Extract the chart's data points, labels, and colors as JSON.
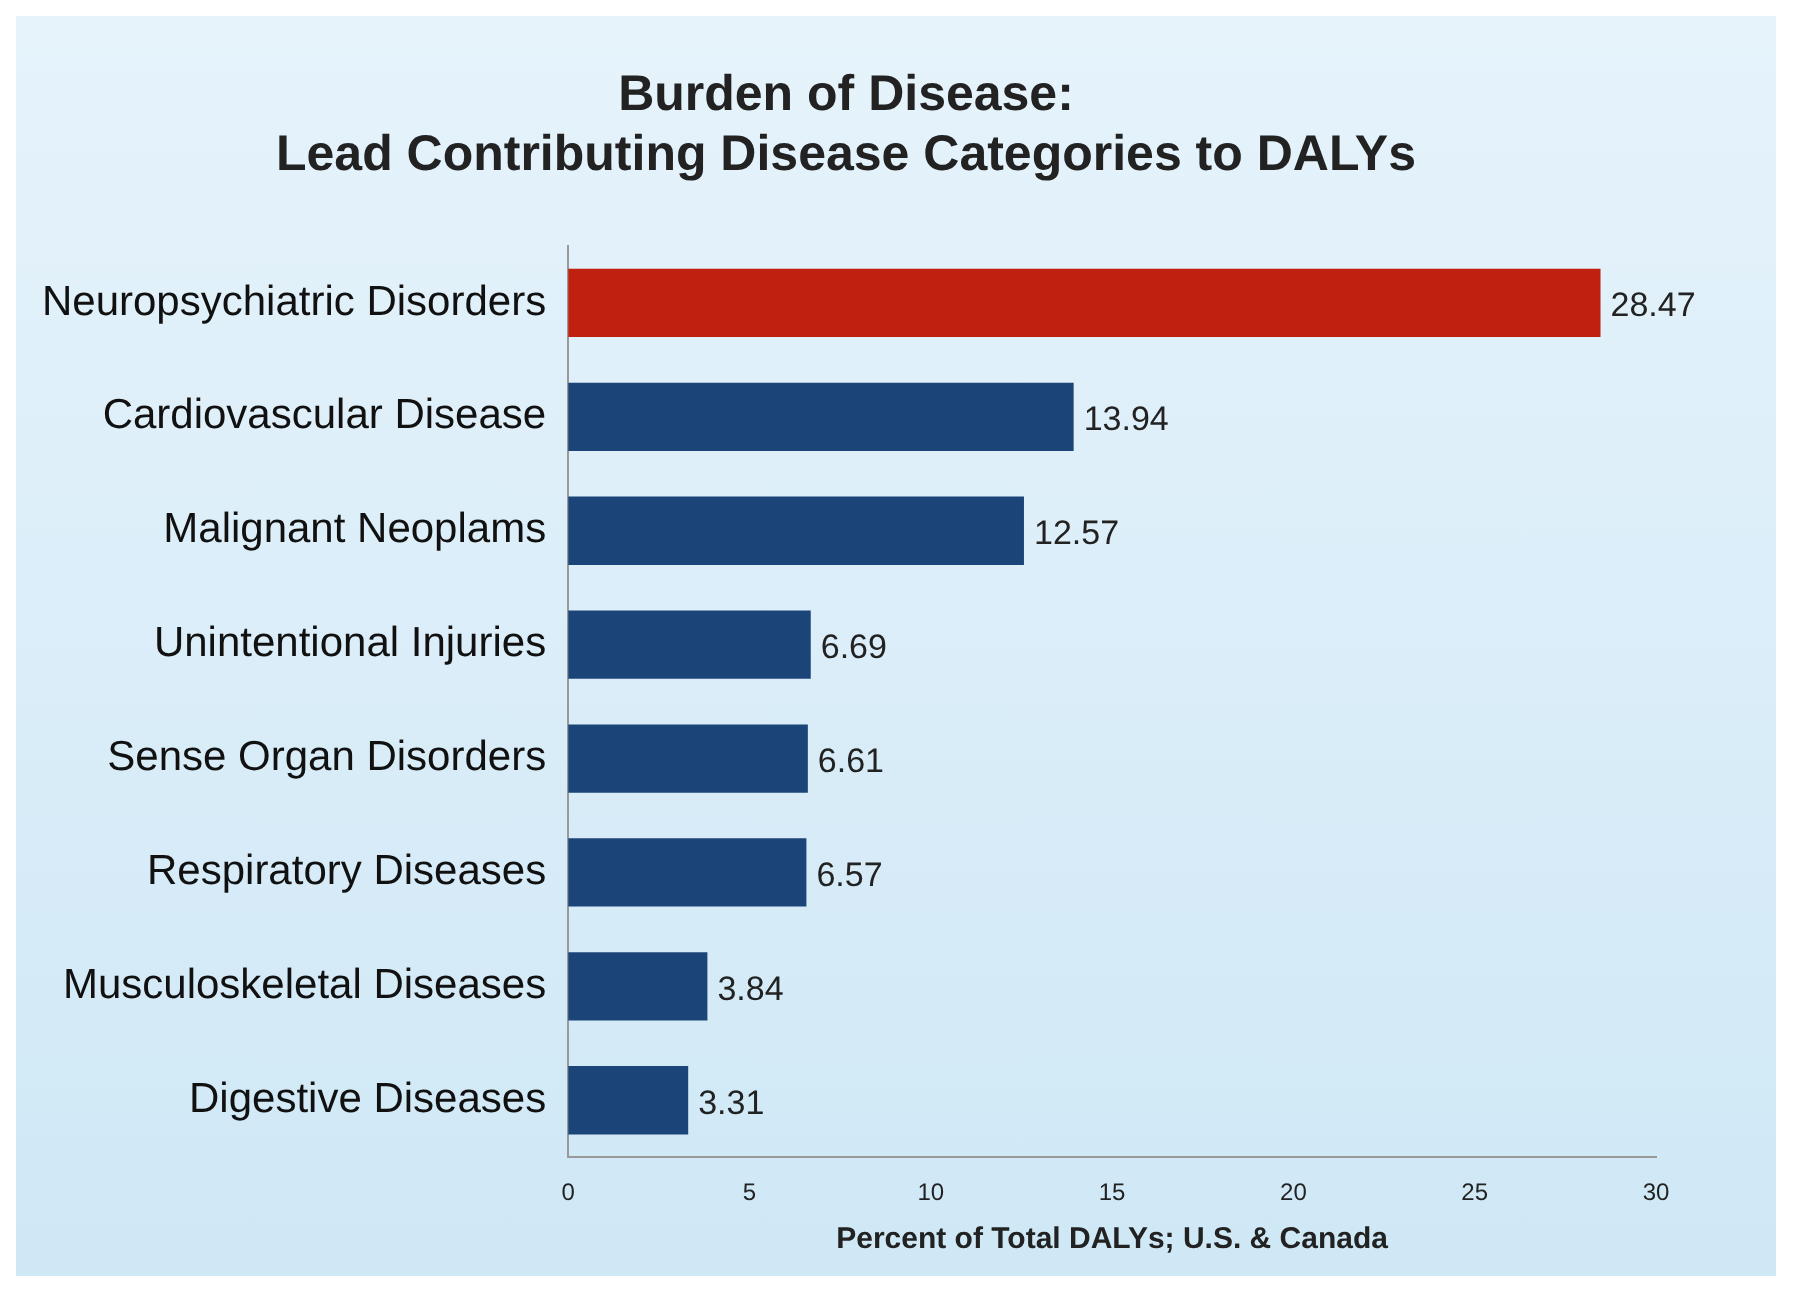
{
  "chart_data": {
    "type": "bar",
    "orientation": "horizontal",
    "title": "Burden of Disease:\nLead Contributing Disease Categories to DALYs",
    "xlabel": "Percent of Total DALYs; U.S. & Canada",
    "categories": [
      "Neuropsychiatric Disorders",
      "Cardiovascular Disease",
      "Malignant Neoplams",
      "Unintentional Injuries",
      "Sense Organ Disorders",
      "Respiratory Diseases",
      "Musculoskeletal Diseases",
      "Digestive Diseases"
    ],
    "values": [
      28.47,
      13.94,
      12.57,
      6.69,
      6.61,
      6.57,
      3.84,
      3.31
    ],
    "colors": [
      "#c0200f",
      "#1b4478",
      "#1b4478",
      "#1b4478",
      "#1b4478",
      "#1b4478",
      "#1b4478",
      "#1b4478"
    ],
    "xlim": [
      0,
      30
    ],
    "xticks": [
      0,
      5,
      10,
      15,
      20,
      25,
      30
    ],
    "data_labels": true,
    "grid": false,
    "legend": false
  }
}
